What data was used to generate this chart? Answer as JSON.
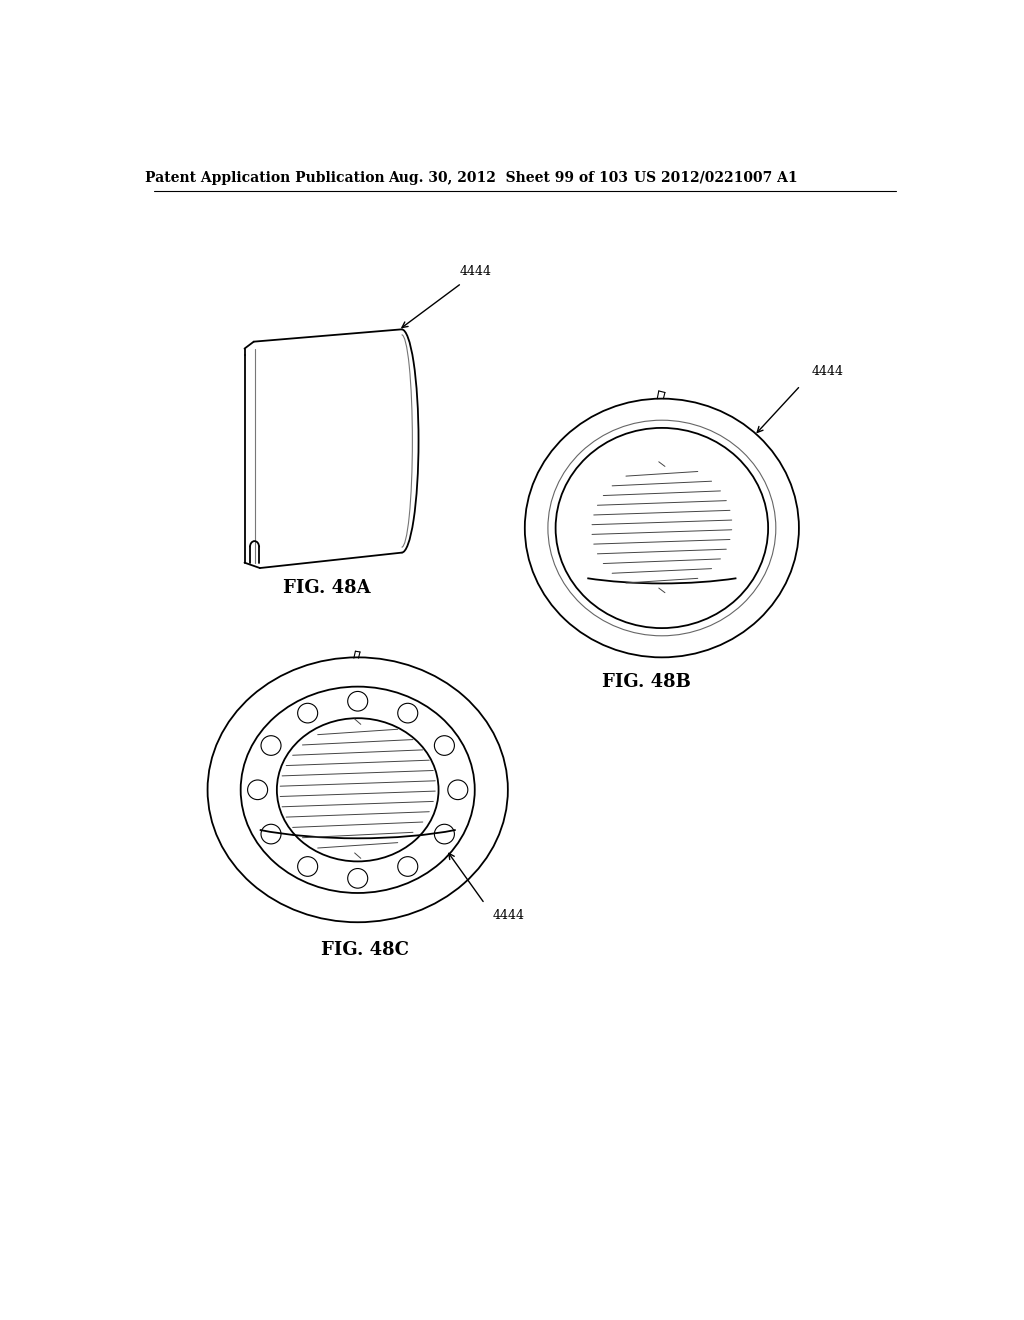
{
  "bg_color": "#ffffff",
  "line_color": "#000000",
  "header_text1": "Patent Application Publication",
  "header_text2": "Aug. 30, 2012  Sheet 99 of 103",
  "header_text3": "US 2012/0221007 A1",
  "fig_label_48A": "FIG. 48A",
  "fig_label_48B": "FIG. 48B",
  "fig_label_48C": "FIG. 48C",
  "ref_num": "4444",
  "fig_label_fontsize": 13,
  "header_fontsize": 10
}
